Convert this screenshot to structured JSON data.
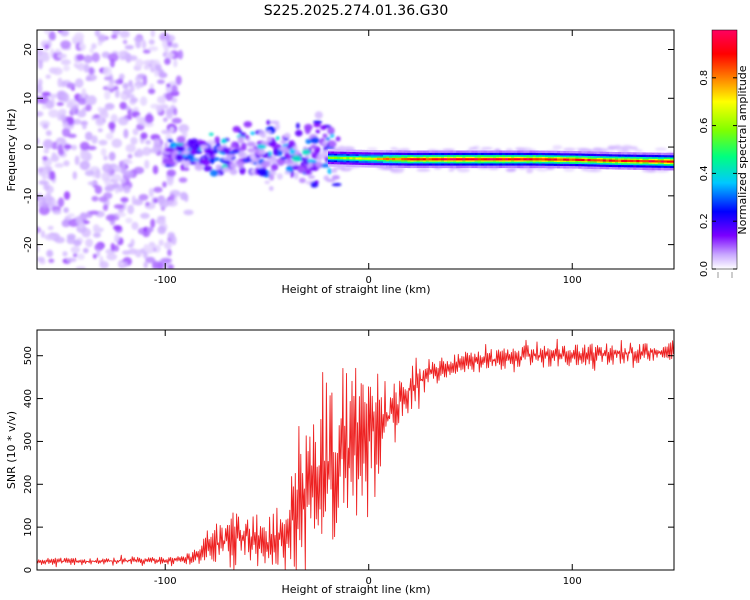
{
  "title": "S225.2025.274.01.36.G30",
  "chart_data": [
    {
      "type": "heatmap",
      "title": "S225.2025.274.01.36.G30",
      "xlabel": "Height of straight line (km)",
      "ylabel": "Frequency (Hz)",
      "xlim": [
        -163,
        150
      ],
      "ylim": [
        -25,
        24
      ],
      "x_ticks": [
        -100,
        0,
        100
      ],
      "x_tick_labels": [
        "-100",
        "0",
        "100"
      ],
      "y_ticks": [
        -20,
        -10,
        0,
        10,
        20
      ],
      "y_tick_labels": [
        "-20",
        "-10",
        "0",
        "10",
        "20"
      ],
      "grid": false,
      "description_of_signal": "Dominant spectral line near -2.5 Hz from about -20 km to 150 km; scattered broadband speckle below -95 km; clustered noisy blobs between -100 km and -20 km",
      "ridge": {
        "x": [
          -20,
          0,
          20,
          40,
          60,
          80,
          100,
          120,
          150
        ],
        "frequency": [
          -2.2,
          -2.4,
          -2.5,
          -2.5,
          -2.5,
          -2.5,
          -2.6,
          -2.8,
          -3.0
        ],
        "amplitude": [
          0.6,
          0.7,
          0.9,
          0.95,
          0.95,
          0.95,
          0.9,
          0.9,
          0.95
        ]
      },
      "colorbar": {
        "label": "Normalized spectral amplitude",
        "ticks": [
          0.0,
          0.2,
          0.4,
          0.6,
          0.8
        ],
        "tick_labels": [
          "0.0",
          "0.2",
          "0.4",
          "0.6",
          "0.8"
        ],
        "range": [
          0,
          1
        ],
        "colormap": [
          "#ffffff",
          "#c9a8ff",
          "#7a00ff",
          "#0000ff",
          "#00c8ff",
          "#00ff80",
          "#80ff00",
          "#ffff00",
          "#ff8000",
          "#ff0000",
          "#ff0060"
        ]
      }
    },
    {
      "type": "line",
      "xlabel": "Height of straight line (km)",
      "ylabel": "SNR (10 * v/v)",
      "xlim": [
        -163,
        150
      ],
      "ylim": [
        0,
        560
      ],
      "x_ticks": [
        -100,
        0,
        100
      ],
      "x_tick_labels": [
        "-100",
        "0",
        "100"
      ],
      "y_ticks": [
        0,
        100,
        200,
        300,
        400,
        500
      ],
      "y_tick_labels": [
        "0",
        "100",
        "200",
        "300",
        "400",
        "500"
      ],
      "grid": false,
      "color": "#ee2222",
      "series": [
        {
          "name": "SNR",
          "x": [
            -163,
            -140,
            -120,
            -100,
            -90,
            -85,
            -80,
            -70,
            -60,
            -50,
            -45,
            -40,
            -35,
            -30,
            -25,
            -20,
            -15,
            -10,
            -5,
            0,
            5,
            10,
            15,
            20,
            25,
            30,
            35,
            40,
            50,
            60,
            80,
            100,
            120,
            150
          ],
          "y": [
            20,
            20,
            22,
            22,
            25,
            30,
            50,
            70,
            80,
            60,
            70,
            100,
            160,
            200,
            230,
            250,
            270,
            280,
            300,
            320,
            340,
            360,
            390,
            420,
            440,
            460,
            470,
            480,
            485,
            490,
            500,
            500,
            505,
            510
          ],
          "noise_amplitude": [
            8,
            8,
            8,
            8,
            12,
            20,
            40,
            60,
            70,
            60,
            70,
            90,
            110,
            140,
            160,
            180,
            200,
            200,
            180,
            150,
            120,
            90,
            60,
            50,
            40,
            30,
            30,
            25,
            25,
            25,
            25,
            25,
            25,
            25
          ]
        }
      ]
    }
  ]
}
